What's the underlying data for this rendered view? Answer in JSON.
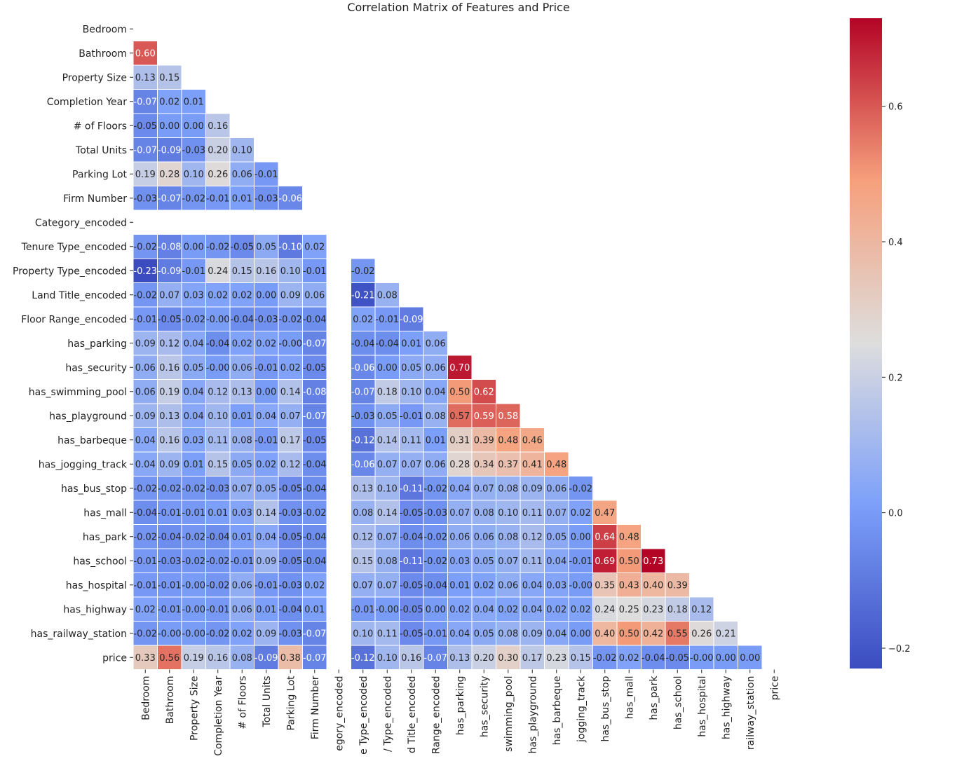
{
  "chart_data": {
    "type": "heatmap",
    "title": "Correlation Matrix of Features and Price",
    "xlabel": "",
    "ylabel": "",
    "colormap": "coolwarm",
    "mask": "upper-triangle-including-diagonal",
    "vmin": -0.23,
    "vmax": 0.73,
    "colorbar_ticks": [
      "0.6",
      "0.4",
      "0.2",
      "0.0",
      "−0.2"
    ],
    "colorbar_tick_values": [
      0.6,
      0.4,
      0.2,
      0.0,
      -0.2
    ],
    "labels": [
      "Bedroom",
      "Bathroom",
      "Property Size",
      "Completion Year",
      "# of Floors",
      "Total Units",
      "Parking Lot",
      "Firm Number",
      "Category_encoded",
      "Tenure Type_encoded",
      "Property Type_encoded",
      "Land Title_encoded",
      "Floor Range_encoded",
      "has_parking",
      "has_security",
      "has_swimming_pool",
      "has_playground",
      "has_barbeque",
      "has_jogging_track",
      "has_bus_stop",
      "has_mall",
      "has_park",
      "has_school",
      "has_hospital",
      "has_highway",
      "has_railway_station",
      "price"
    ],
    "column_labels_displayed": [
      "Bedroom",
      "Bathroom",
      "Property Size",
      "Completion Year",
      "# of Floors",
      "Total Units",
      "Parking Lot",
      "Firm Number",
      "egory_encoded",
      "e Type_encoded",
      "/ Type_encoded",
      "d Title_encoded",
      "Range_encoded",
      "has_parking",
      "has_security",
      "swimming_pool",
      "has_playground",
      "has_barbeque",
      "jogging_track",
      "has_bus_stop",
      "has_mall",
      "has_park",
      "has_school",
      "has_hospital",
      "has_highway",
      "railway_station",
      "price"
    ],
    "rows": [
      [],
      [
        0.6
      ],
      [
        0.13,
        0.15
      ],
      [
        -0.07,
        0.02,
        0.01
      ],
      [
        -0.05,
        0.0,
        0.0,
        0.16
      ],
      [
        -0.07,
        -0.09,
        -0.03,
        0.2,
        0.1
      ],
      [
        0.19,
        0.28,
        0.1,
        0.26,
        0.06,
        -0.01
      ],
      [
        -0.03,
        -0.07,
        -0.02,
        -0.01,
        0.01,
        -0.03,
        -0.06
      ],
      [
        null,
        null,
        null,
        null,
        null,
        null,
        null,
        null
      ],
      [
        -0.02,
        -0.08,
        0.0,
        -0.02,
        -0.05,
        0.05,
        -0.1,
        0.02,
        null
      ],
      [
        -0.23,
        -0.09,
        -0.01,
        0.24,
        0.15,
        0.16,
        0.1,
        -0.01,
        null,
        -0.02
      ],
      [
        -0.02,
        0.07,
        0.03,
        0.02,
        0.02,
        0.0,
        0.09,
        0.06,
        null,
        -0.21,
        0.08
      ],
      [
        -0.01,
        -0.05,
        -0.02,
        -0.0,
        -0.04,
        -0.03,
        -0.02,
        -0.04,
        null,
        0.02,
        -0.01,
        -0.09
      ],
      [
        0.09,
        0.12,
        0.04,
        -0.04,
        0.02,
        0.02,
        -0.0,
        -0.07,
        null,
        -0.04,
        -0.04,
        0.01,
        0.06
      ],
      [
        0.06,
        0.16,
        0.05,
        -0.0,
        0.06,
        -0.01,
        0.02,
        -0.05,
        null,
        -0.06,
        0.0,
        0.05,
        0.06,
        0.7
      ],
      [
        0.06,
        0.19,
        0.04,
        0.12,
        0.13,
        0.0,
        0.14,
        -0.08,
        null,
        -0.07,
        0.18,
        0.1,
        0.04,
        0.5,
        0.62
      ],
      [
        0.09,
        0.13,
        0.04,
        0.1,
        0.01,
        0.04,
        0.07,
        -0.07,
        null,
        -0.03,
        0.05,
        -0.01,
        0.08,
        0.57,
        0.59,
        0.58
      ],
      [
        0.04,
        0.16,
        0.03,
        0.11,
        0.08,
        -0.01,
        0.17,
        -0.05,
        null,
        -0.12,
        0.14,
        0.11,
        0.01,
        0.31,
        0.39,
        0.48,
        0.46
      ],
      [
        0.04,
        0.09,
        0.01,
        0.15,
        0.05,
        0.02,
        0.12,
        -0.04,
        null,
        -0.06,
        0.07,
        0.07,
        0.06,
        0.28,
        0.34,
        0.37,
        0.41,
        0.48
      ],
      [
        -0.02,
        -0.02,
        -0.02,
        -0.03,
        0.07,
        0.05,
        -0.05,
        -0.04,
        null,
        0.13,
        0.1,
        -0.11,
        -0.02,
        0.04,
        0.07,
        0.08,
        0.09,
        0.06,
        -0.02
      ],
      [
        -0.04,
        -0.01,
        -0.01,
        0.01,
        0.03,
        0.14,
        -0.03,
        -0.02,
        null,
        0.08,
        0.14,
        -0.05,
        -0.03,
        0.07,
        0.08,
        0.1,
        0.11,
        0.07,
        0.02,
        0.47
      ],
      [
        -0.02,
        -0.04,
        -0.02,
        -0.04,
        0.01,
        0.04,
        -0.05,
        -0.04,
        null,
        0.12,
        0.07,
        -0.04,
        -0.02,
        0.06,
        0.06,
        0.08,
        0.12,
        0.05,
        0.0,
        0.64,
        0.48
      ],
      [
        -0.01,
        -0.03,
        -0.02,
        -0.02,
        -0.01,
        0.09,
        -0.05,
        -0.04,
        null,
        0.15,
        0.08,
        -0.11,
        -0.02,
        0.03,
        0.05,
        0.07,
        0.11,
        0.04,
        -0.01,
        0.69,
        0.5,
        0.73
      ],
      [
        -0.01,
        -0.01,
        -0.0,
        -0.02,
        0.06,
        -0.01,
        -0.03,
        0.02,
        null,
        0.07,
        0.07,
        -0.05,
        -0.04,
        0.01,
        0.02,
        0.06,
        0.04,
        0.03,
        -0.0,
        0.35,
        0.43,
        0.4,
        0.39
      ],
      [
        0.02,
        -0.01,
        -0.0,
        -0.01,
        0.06,
        0.01,
        -0.04,
        0.01,
        null,
        -0.01,
        -0.0,
        -0.05,
        0.0,
        0.02,
        0.04,
        0.02,
        0.04,
        0.02,
        0.02,
        0.24,
        0.25,
        0.23,
        0.18,
        0.12
      ],
      [
        -0.02,
        -0.0,
        -0.0,
        -0.02,
        0.02,
        0.09,
        -0.03,
        -0.07,
        null,
        0.1,
        0.11,
        -0.05,
        -0.01,
        0.04,
        0.05,
        0.08,
        0.09,
        0.04,
        0.0,
        0.4,
        0.5,
        0.42,
        0.55,
        0.26,
        0.21
      ],
      [
        0.33,
        0.56,
        0.19,
        0.16,
        0.08,
        -0.09,
        0.38,
        -0.07,
        null,
        -0.12,
        0.1,
        0.16,
        -0.07,
        0.13,
        0.2,
        0.3,
        0.17,
        0.23,
        0.15,
        -0.02,
        0.02,
        -0.04,
        -0.05,
        -0.0,
        0.0,
        0.0
      ]
    ]
  }
}
